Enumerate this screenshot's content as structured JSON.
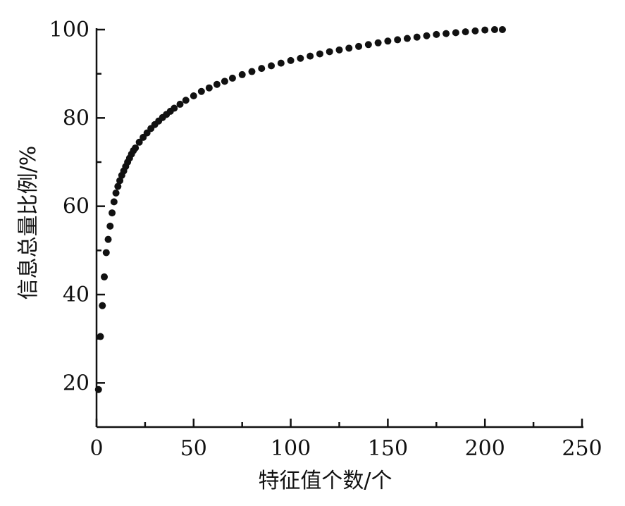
{
  "chart_data": {
    "type": "scatter",
    "title": "",
    "xlabel": "特征值个数/个",
    "ylabel": "信息总量比例/%",
    "xlim": [
      0,
      250
    ],
    "ylim": [
      10,
      100
    ],
    "xticks": [
      0,
      50,
      100,
      150,
      200,
      250
    ],
    "yticks": [
      20,
      40,
      60,
      80,
      100
    ],
    "grid": false,
    "legend": "none",
    "marker_color": "#111111",
    "series": [
      {
        "x": [
          1,
          2,
          3,
          4,
          5,
          6,
          7,
          8,
          9,
          10,
          11,
          12,
          13,
          14,
          15,
          16,
          17,
          18,
          19,
          20,
          22,
          24,
          26,
          28,
          30,
          32,
          34,
          36,
          38,
          40,
          43,
          46,
          50,
          54,
          58,
          62,
          66,
          70,
          75,
          80,
          85,
          90,
          95,
          100,
          105,
          110,
          115,
          120,
          125,
          130,
          135,
          140,
          145,
          150,
          155,
          160,
          165,
          170,
          175,
          180,
          185,
          190,
          195,
          200,
          205,
          209
        ],
        "y": [
          18.5,
          30.5,
          37.5,
          44.0,
          49.5,
          52.5,
          55.5,
          58.5,
          61.0,
          63.0,
          64.5,
          65.8,
          67.0,
          68.0,
          69.0,
          70.0,
          70.9,
          71.8,
          72.6,
          73.2,
          74.5,
          75.6,
          76.6,
          77.6,
          78.5,
          79.3,
          80.1,
          80.8,
          81.5,
          82.2,
          83.1,
          84.0,
          85.0,
          86.0,
          86.8,
          87.6,
          88.3,
          89.0,
          89.8,
          90.5,
          91.2,
          91.8,
          92.4,
          93.0,
          93.5,
          94.0,
          94.5,
          95.0,
          95.4,
          95.8,
          96.2,
          96.6,
          97.0,
          97.4,
          97.7,
          98.0,
          98.3,
          98.6,
          98.9,
          99.1,
          99.3,
          99.5,
          99.7,
          99.9,
          100.0,
          100.0
        ]
      }
    ]
  }
}
